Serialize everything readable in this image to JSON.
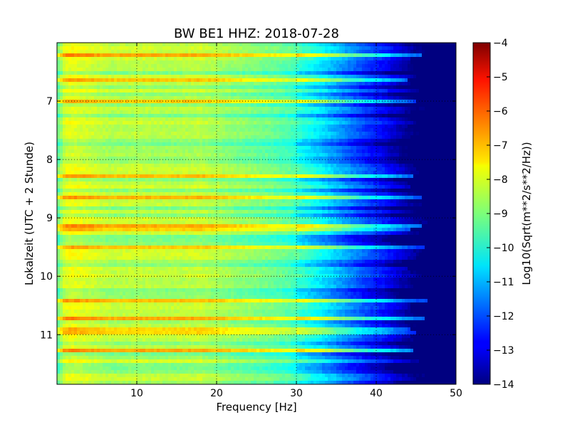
{
  "chart_data": {
    "type": "heatmap",
    "title": "BW BE1 HHZ: 2018-07-28",
    "xlabel": "Frequency [Hz]",
    "ylabel": "Lokalzeit (UTC + 2 Stunde)",
    "colorbar_label": "Log10(Sqrt(m**2/s**2/Hz))",
    "xlim": [
      0,
      50
    ],
    "ylim": [
      6.0,
      11.85
    ],
    "y_inverted": true,
    "x_ticks": [
      10,
      20,
      30,
      40,
      50
    ],
    "y_ticks": [
      7,
      8,
      9,
      10,
      11
    ],
    "color_range": [
      -14,
      -4
    ],
    "colorbar_ticks": [
      -4,
      -5,
      -6,
      -7,
      -8,
      -9,
      -10,
      -11,
      -12,
      -13,
      -14
    ],
    "colormap": "jet",
    "grid": true,
    "frequency_profile": {
      "x": [
        0,
        1,
        2,
        4,
        7,
        10,
        14,
        18,
        22,
        26,
        29,
        31,
        33,
        35,
        37,
        39,
        41,
        43,
        45,
        47,
        50
      ],
      "values": [
        -9.2,
        -8.0,
        -7.9,
        -8.1,
        -8.4,
        -8.3,
        -8.4,
        -8.3,
        -8.7,
        -9.0,
        -9.3,
        -9.8,
        -10.3,
        -10.9,
        -11.5,
        -12.1,
        -12.6,
        -13.3,
        -14.0,
        -14.0,
        -14.0
      ]
    }
  }
}
